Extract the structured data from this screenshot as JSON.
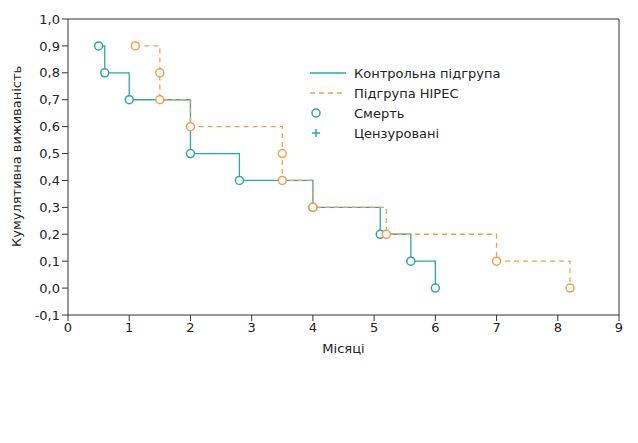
{
  "chart_data": {
    "type": "line",
    "xlabel": "Місяці",
    "ylabel": "Кумулятивна виживаність",
    "legend": "upper right",
    "xlim": [
      0,
      9
    ],
    "xticks": [
      0,
      1,
      2,
      3,
      4,
      5,
      6,
      7,
      8,
      9
    ],
    "ylim": [
      -0.1,
      1.0
    ],
    "yticks": [
      {
        "value": -0.1,
        "label": "-0,1"
      },
      {
        "value": 0.0,
        "label": "0,0"
      },
      {
        "value": 0.1,
        "label": "0,1"
      },
      {
        "value": 0.2,
        "label": "0,2"
      },
      {
        "value": 0.3,
        "label": "0,3"
      },
      {
        "value": 0.4,
        "label": "0,4"
      },
      {
        "value": 0.5,
        "label": "0,5"
      },
      {
        "value": 0.6,
        "label": "0,6"
      },
      {
        "value": 0.7,
        "label": "0,7"
      },
      {
        "value": 0.8,
        "label": "0,8"
      },
      {
        "value": 0.9,
        "label": "0,9"
      },
      {
        "value": 1.0,
        "label": "1,0"
      }
    ],
    "series": [
      {
        "name": "Контрольна підгрупа",
        "color": "#2ba6ad",
        "line_style": "solid",
        "marker": "circle",
        "x": [
          0.5,
          0.6,
          1.0,
          2.0,
          2.8,
          4.0,
          5.1,
          5.6,
          6.0
        ],
        "values": [
          0.9,
          0.8,
          0.7,
          0.5,
          0.4,
          0.3,
          0.2,
          0.1,
          0.0
        ]
      },
      {
        "name": "Підгрупа  HIPEC",
        "color": "#f0a04b",
        "line_style": "dashed",
        "marker": "circle",
        "x": [
          1.1,
          1.5,
          1.5,
          2.0,
          3.5,
          3.5,
          4.0,
          5.2,
          7.0,
          8.2
        ],
        "values": [
          0.9,
          0.8,
          0.7,
          0.6,
          0.5,
          0.4,
          0.3,
          0.2,
          0.1,
          0.0
        ]
      },
      {
        "name": "Смерть",
        "color": "#2ba6ad",
        "marker": "circle",
        "x": [],
        "values": []
      },
      {
        "name": "Цензуровані",
        "color": "#2ba6ad",
        "marker": "plus",
        "x": [],
        "values": []
      }
    ]
  }
}
